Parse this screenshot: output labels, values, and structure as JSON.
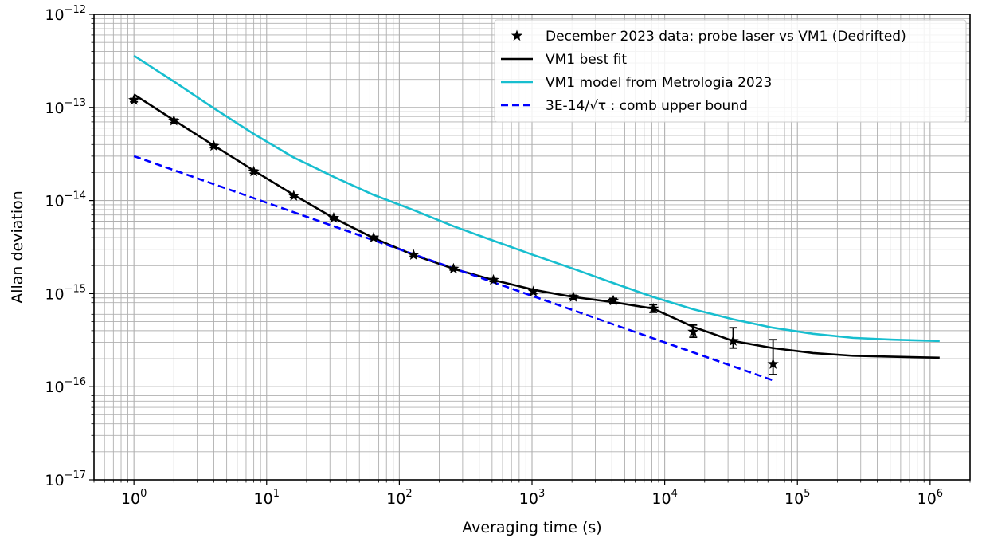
{
  "chart_data": {
    "type": "line",
    "xlabel": "Averaging time (s)",
    "ylabel": "Allan deviation",
    "x_scale": "log",
    "y_scale": "log",
    "xlim": [
      0.5,
      2000000
    ],
    "ylim": [
      1e-17,
      1e-12
    ],
    "grid": true,
    "legend_position": "top-right",
    "x_ticks": [
      {
        "value": 1,
        "base": "10",
        "exp": "0"
      },
      {
        "value": 10,
        "base": "10",
        "exp": "1"
      },
      {
        "value": 100,
        "base": "10",
        "exp": "2"
      },
      {
        "value": 1000,
        "base": "10",
        "exp": "3"
      },
      {
        "value": 10000,
        "base": "10",
        "exp": "4"
      },
      {
        "value": 100000,
        "base": "10",
        "exp": "5"
      },
      {
        "value": 1000000,
        "base": "10",
        "exp": "6"
      }
    ],
    "y_ticks": [
      {
        "value": 1e-12,
        "base": "10",
        "exp": "−12"
      },
      {
        "value": 1e-13,
        "base": "10",
        "exp": "−13"
      },
      {
        "value": 1e-14,
        "base": "10",
        "exp": "−14"
      },
      {
        "value": 1e-15,
        "base": "10",
        "exp": "−15"
      },
      {
        "value": 1e-16,
        "base": "10",
        "exp": "−16"
      },
      {
        "value": 1e-17,
        "base": "10",
        "exp": "−17"
      }
    ],
    "series": [
      {
        "name": "December 2023 data: probe laser vs VM1 (Dedrifted)",
        "kind": "points-with-errorbars",
        "color": "#000000",
        "points": [
          {
            "x": 1,
            "y": 1.2e-13,
            "lo": 1.15e-13,
            "hi": 1.25e-13
          },
          {
            "x": 2,
            "y": 7.2e-14,
            "lo": 6.9e-14,
            "hi": 7.5e-14
          },
          {
            "x": 4,
            "y": 3.85e-14,
            "lo": 3.7e-14,
            "hi": 4e-14
          },
          {
            "x": 8,
            "y": 2.05e-14,
            "lo": 1.97e-14,
            "hi": 2.13e-14
          },
          {
            "x": 16,
            "y": 1.12e-14,
            "lo": 1.08e-14,
            "hi": 1.16e-14
          },
          {
            "x": 32,
            "y": 6.5e-15,
            "lo": 6.3e-15,
            "hi": 6.7e-15
          },
          {
            "x": 64,
            "y": 4e-15,
            "lo": 3.88e-15,
            "hi": 4.12e-15
          },
          {
            "x": 128,
            "y": 2.6e-15,
            "lo": 2.52e-15,
            "hi": 2.68e-15
          },
          {
            "x": 256,
            "y": 1.85e-15,
            "lo": 1.79e-15,
            "hi": 1.91e-15
          },
          {
            "x": 512,
            "y": 1.4e-15,
            "lo": 1.35e-15,
            "hi": 1.45e-15
          },
          {
            "x": 1024,
            "y": 1.05e-15,
            "lo": 1e-15,
            "hi": 1.1e-15
          },
          {
            "x": 2048,
            "y": 9.2e-16,
            "lo": 8.8e-16,
            "hi": 9.6e-16
          },
          {
            "x": 4096,
            "y": 8.4e-16,
            "lo": 7.9e-16,
            "hi": 8.9e-16
          },
          {
            "x": 8192,
            "y": 6.9e-16,
            "lo": 6.3e-16,
            "hi": 7.6e-16
          },
          {
            "x": 16384,
            "y": 3.9e-16,
            "lo": 3.4e-16,
            "hi": 4.6e-16
          },
          {
            "x": 32768,
            "y": 3.1e-16,
            "lo": 2.6e-16,
            "hi": 4.3e-16
          },
          {
            "x": 65536,
            "y": 1.75e-16,
            "lo": 1.35e-16,
            "hi": 3.2e-16
          }
        ]
      },
      {
        "name": "VM1 best fit",
        "kind": "line",
        "color": "#000000",
        "style": "solid",
        "points": [
          {
            "x": 1,
            "y": 1.38e-13
          },
          {
            "x": 2,
            "y": 7.3e-14
          },
          {
            "x": 4,
            "y": 3.9e-14
          },
          {
            "x": 8,
            "y": 2.1e-14
          },
          {
            "x": 16,
            "y": 1.15e-14
          },
          {
            "x": 32,
            "y": 6.5e-15
          },
          {
            "x": 64,
            "y": 3.95e-15
          },
          {
            "x": 128,
            "y": 2.6e-15
          },
          {
            "x": 256,
            "y": 1.85e-15
          },
          {
            "x": 512,
            "y": 1.4e-15
          },
          {
            "x": 1024,
            "y": 1.1e-15
          },
          {
            "x": 2048,
            "y": 9.2e-16
          },
          {
            "x": 4096,
            "y": 8.1e-16
          },
          {
            "x": 8192,
            "y": 6.9e-16
          },
          {
            "x": 16384,
            "y": 4.4e-16
          },
          {
            "x": 32768,
            "y": 3.1e-16
          },
          {
            "x": 65536,
            "y": 2.6e-16
          },
          {
            "x": 131072,
            "y": 2.3e-16
          },
          {
            "x": 262144,
            "y": 2.15e-16
          },
          {
            "x": 524288,
            "y": 2.1e-16
          },
          {
            "x": 1179648,
            "y": 2.05e-16
          }
        ]
      },
      {
        "name": "VM1 model from Metrologia 2023",
        "kind": "line",
        "color": "#17becf",
        "style": "solid",
        "points": [
          {
            "x": 1,
            "y": 3.6e-13
          },
          {
            "x": 2,
            "y": 1.9e-13
          },
          {
            "x": 4,
            "y": 9.8e-14
          },
          {
            "x": 8,
            "y": 5.2e-14
          },
          {
            "x": 16,
            "y": 2.9e-14
          },
          {
            "x": 32,
            "y": 1.8e-14
          },
          {
            "x": 64,
            "y": 1.15e-14
          },
          {
            "x": 128,
            "y": 7.9e-15
          },
          {
            "x": 256,
            "y": 5.3e-15
          },
          {
            "x": 512,
            "y": 3.7e-15
          },
          {
            "x": 1024,
            "y": 2.6e-15
          },
          {
            "x": 2048,
            "y": 1.85e-15
          },
          {
            "x": 4096,
            "y": 1.3e-15
          },
          {
            "x": 8192,
            "y": 9.2e-16
          },
          {
            "x": 16384,
            "y": 6.8e-16
          },
          {
            "x": 32768,
            "y": 5.3e-16
          },
          {
            "x": 65536,
            "y": 4.3e-16
          },
          {
            "x": 131072,
            "y": 3.7e-16
          },
          {
            "x": 262144,
            "y": 3.35e-16
          },
          {
            "x": 524288,
            "y": 3.2e-16
          },
          {
            "x": 1179648,
            "y": 3.1e-16
          }
        ]
      },
      {
        "name": "3E-14/√τ : comb upper bound",
        "kind": "line",
        "color": "#0000ff",
        "style": "dashed",
        "points": [
          {
            "x": 1,
            "y": 3e-14
          },
          {
            "x": 65536,
            "y": 1.17e-16
          }
        ]
      }
    ]
  }
}
